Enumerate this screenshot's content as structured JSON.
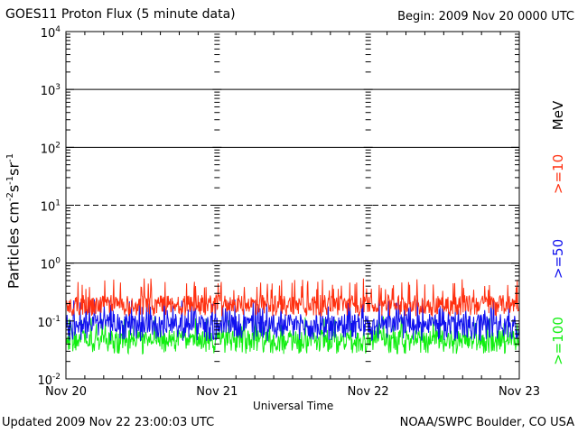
{
  "header": {
    "title": "GOES11 Proton Flux (5 minute data)",
    "begin": "Begin: 2009 Nov 20 0000 UTC"
  },
  "footer": {
    "updated": "Updated 2009 Nov 22 23:00:03 UTC",
    "credit": "NOAA/SWPC Boulder, CO USA"
  },
  "energy_labels": {
    "unit": "MeV",
    "ge10": ">=10",
    "ge50": ">=50",
    "ge100": ">=100"
  },
  "colors": {
    "ge10": "#ff3010",
    "ge50": "#1010ee",
    "ge100": "#10ee10"
  },
  "chart_data": {
    "type": "line",
    "title": "GOES11 Proton Flux (5 minute data)",
    "xlabel": "Universal Time",
    "ylabel": "Particles cm-2 s-1 sr-1",
    "yscale": "log",
    "ylim": [
      0.01,
      10000
    ],
    "y_ticks": [
      {
        "base": "10",
        "exp": "-2"
      },
      {
        "base": "10",
        "exp": "-1"
      },
      {
        "base": "10",
        "exp": "0"
      },
      {
        "base": "10",
        "exp": "1"
      },
      {
        "base": "10",
        "exp": "2"
      },
      {
        "base": "10",
        "exp": "3"
      },
      {
        "base": "10",
        "exp": "4"
      }
    ],
    "x_ticks": [
      "Nov 20",
      "Nov 21",
      "Nov 22",
      "Nov 23"
    ],
    "xlim_days": [
      0,
      3
    ],
    "reference_lines": [
      {
        "value": 1,
        "style": "solid"
      },
      {
        "value": 10,
        "style": "dashed"
      },
      {
        "value": 100,
        "style": "solid"
      },
      {
        "value": 1000,
        "style": "solid"
      }
    ],
    "series": [
      {
        "name": ">=10 MeV",
        "color": "#ff3010",
        "typical": 0.2,
        "min": 0.12,
        "max": 0.55
      },
      {
        "name": ">=50 MeV",
        "color": "#1010ee",
        "typical": 0.09,
        "min": 0.045,
        "max": 0.25
      },
      {
        "name": ">=100 MeV",
        "color": "#10ee10",
        "typical": 0.05,
        "min": 0.027,
        "max": 0.12
      }
    ],
    "points_per_day": 288
  }
}
